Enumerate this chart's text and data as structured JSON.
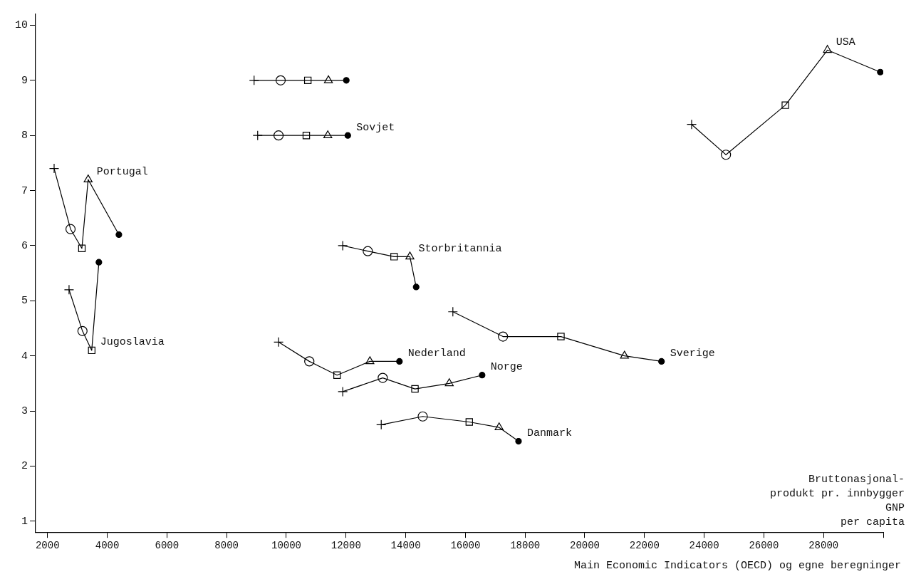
{
  "chart_data": {
    "type": "line",
    "xlabel": "Bruttonasjonal-\nprodukt pr. innbygger\nGNP\nper capita",
    "xlim": [
      1600,
      30000
    ],
    "ylim": [
      0.8,
      10.2
    ],
    "xticks": [
      2000,
      4000,
      6000,
      8000,
      10000,
      12000,
      14000,
      16000,
      18000,
      20000,
      22000,
      24000,
      26000,
      28000,
      {
        "value": 30000,
        "label": null
      }
    ],
    "yticks": [
      1,
      2,
      3,
      4,
      5,
      6,
      7,
      8,
      9,
      10
    ],
    "grid": false,
    "legend": false,
    "series": [
      {
        "type": "line",
        "color": "#000000",
        "marker": "none",
        "x": [
          8920,
          9810,
          10720,
          11410,
          12010
        ],
        "values": [
          9,
          9,
          9,
          9,
          9
        ]
      },
      {
        "type": "line",
        "color": "#000000",
        "marker": "none",
        "x": [
          9040,
          9740,
          10670,
          11390,
          12060
        ],
        "values": [
          8,
          8,
          8,
          8,
          8
        ]
      },
      {
        "type": "line",
        "color": "#000000",
        "marker": "none",
        "x": [
          2220,
          2770,
          3150,
          3360,
          4390
        ],
        "values": [
          7.4,
          6.3,
          5.95,
          7.2,
          6.2
        ]
      },
      {
        "type": "line",
        "color": "#000000",
        "marker": "none",
        "x": [
          2720,
          3170,
          3480,
          3720
        ],
        "values": [
          5.2,
          4.45,
          4.1,
          5.7
        ]
      },
      {
        "type": "line",
        "color": "#000000",
        "marker": "none",
        "x": [
          11890,
          12730,
          13610,
          14140,
          14350
        ],
        "values": [
          6.0,
          5.9,
          5.8,
          5.8,
          5.25
        ]
      },
      {
        "type": "line",
        "color": "#000000",
        "marker": "none",
        "x": [
          9740,
          10770,
          11700,
          12800,
          13790
        ],
        "values": [
          4.25,
          3.9,
          3.65,
          3.9,
          3.9
        ]
      },
      {
        "type": "line",
        "color": "#000000",
        "marker": "none",
        "x": [
          11890,
          13230,
          14310,
          15460,
          16560
        ],
        "values": [
          3.35,
          3.6,
          3.4,
          3.5,
          3.65
        ]
      },
      {
        "type": "line",
        "color": "#000000",
        "marker": "none",
        "x": [
          13180,
          14570,
          16130,
          17130,
          17780
        ],
        "values": [
          2.75,
          2.9,
          2.8,
          2.7,
          2.45
        ]
      },
      {
        "type": "line",
        "color": "#000000",
        "marker": "none",
        "x": [
          15580,
          17260,
          19200,
          21330,
          22570
        ],
        "values": [
          4.8,
          4.35,
          4.35,
          4.0,
          3.9
        ]
      },
      {
        "type": "line",
        "color": "#000000",
        "marker": "none",
        "x": [
          23580,
          24730,
          26720,
          28130,
          29900
        ],
        "values": [
          8.2,
          7.65,
          8.55,
          9.55,
          9.15
        ]
      },
      {
        "type": "scatter",
        "marker": "cross",
        "x": [
          8920,
          9040,
          2220,
          2720,
          11890,
          9740,
          11890,
          13180,
          15580,
          23580
        ],
        "values": [
          9,
          8,
          7.4,
          5.2,
          6.0,
          4.25,
          3.35,
          2.75,
          4.8,
          8.2
        ]
      },
      {
        "type": "scatter",
        "marker": "circle",
        "x": [
          9810,
          9740,
          2770,
          3170,
          12730,
          10770,
          13230,
          14570,
          17260,
          24730
        ],
        "values": [
          9,
          8,
          6.3,
          4.45,
          5.9,
          3.9,
          3.6,
          2.9,
          4.35,
          7.65
        ]
      },
      {
        "type": "scatter",
        "marker": "square",
        "x": [
          10720,
          10670,
          3150,
          3480,
          13610,
          11700,
          14310,
          16130,
          19200,
          26720
        ],
        "values": [
          9,
          8,
          5.95,
          4.1,
          5.8,
          3.65,
          3.4,
          2.8,
          4.35,
          8.55
        ]
      },
      {
        "type": "scatter",
        "marker": "triangle",
        "x": [
          11410,
          11390,
          3360,
          14140,
          12800,
          15460,
          17130,
          21330,
          28130
        ],
        "values": [
          9,
          8,
          7.2,
          5.8,
          3.9,
          3.5,
          2.7,
          4.0,
          9.55
        ]
      },
      {
        "type": "scatter",
        "marker": "circle",
        "color": "#000000",
        "x": [
          12010,
          12060,
          4390,
          3720,
          14350,
          13790,
          16560,
          17780,
          22570,
          29900
        ],
        "values": [
          9,
          8,
          6.2,
          5.7,
          5.25,
          3.9,
          3.65,
          2.45,
          3.9,
          9.15
        ]
      }
    ],
    "annotations": [
      {
        "text": "Sovjet",
        "x": 12060,
        "y": 8
      },
      {
        "text": "Portugal",
        "x": 3360,
        "y": 7.2
      },
      {
        "text": "Jugoslavia",
        "x": 3480,
        "y": 4.1
      },
      {
        "text": "Storbritannia",
        "x": 14140,
        "y": 5.8
      },
      {
        "text": "Nederland",
        "x": 13790,
        "y": 3.9
      },
      {
        "text": "Norge",
        "x": 16560,
        "y": 3.65
      },
      {
        "text": "Danmark",
        "x": 17780,
        "y": 2.45
      },
      {
        "text": "Sverige",
        "x": 22570,
        "y": 3.9
      },
      {
        "text": "USA",
        "x": 28130,
        "y": 9.55
      },
      "Main Economic Indicators (OECD) og egne beregninger"
    ]
  }
}
